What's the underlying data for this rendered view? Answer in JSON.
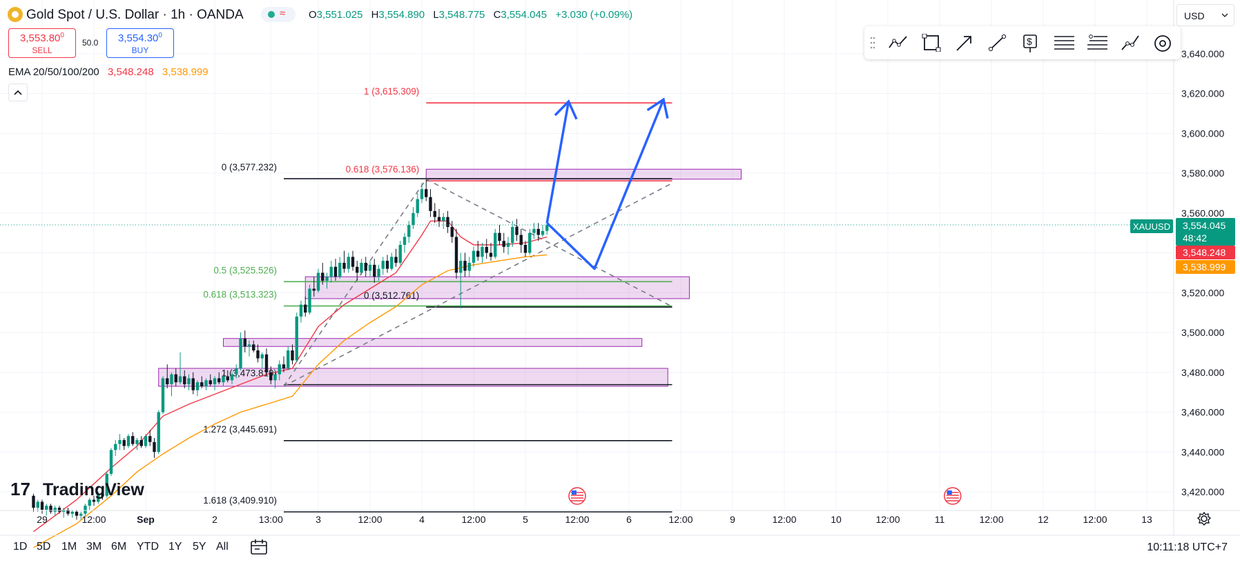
{
  "header": {
    "title": "Gold Spot / U.S. Dollar · 1h · OANDA",
    "ohlc": [
      {
        "key": "O",
        "value": "3,551.025"
      },
      {
        "key": "H",
        "value": "3,554.890"
      },
      {
        "key": "L",
        "value": "3,548.775"
      },
      {
        "key": "C",
        "value": "3,554.045"
      }
    ],
    "change": "+3.030 (+0.09%)",
    "status_icons": [
      "market-open-dot-icon",
      "wave-icon"
    ]
  },
  "trade": {
    "sell_price": "3,553.80",
    "sell_price_sup": "0",
    "sell_label": "SELL",
    "spread": "50.0",
    "buy_price": "3,554.30",
    "buy_price_sup": "0",
    "buy_label": "BUY"
  },
  "ema": {
    "label": "EMA 20/50/100/200",
    "value_20": "3,548.248",
    "value_50": "3,538.999",
    "color_20": "#f23645",
    "color_50": "#ff9800"
  },
  "currency": "USD",
  "toolbar": {
    "tools": [
      "trend-line-icon",
      "rectangle-icon",
      "arrow-icon",
      "ray-icon",
      "price-label-icon",
      "fib-retracement-icon",
      "fib-extension-icon",
      "path-icon",
      "eye-icon"
    ]
  },
  "symbol_badge": "XAUUSD",
  "price_tags": {
    "current": "3,554.045",
    "countdown": "48:42",
    "ema20": "3,548.248",
    "ema50": "3,538.999"
  },
  "bottom": {
    "ranges": [
      "1D",
      "5D",
      "1M",
      "3M",
      "6M",
      "YTD",
      "1Y",
      "5Y",
      "All"
    ],
    "time": "10:11:18 UTC+7"
  },
  "chart_data": {
    "type": "candlestick",
    "symbol": "XAUUSD",
    "title": "Gold Spot / U.S. Dollar · 1h · OANDA",
    "ylim": [
      3410,
      3650
    ],
    "y_ticks": [
      3420,
      3440,
      3460,
      3480,
      3500,
      3520,
      3540,
      3560,
      3580,
      3600,
      3620,
      3640
    ],
    "y_tick_labels": [
      "3,420.000",
      "3,440.000",
      "3,460.000",
      "3,480.000",
      "3,500.000",
      "3,520.000",
      "3,540.000",
      "3,560.000",
      "3,580.000",
      "3,600.000",
      "3,620.000",
      "3,640.000"
    ],
    "x_ticks": [
      {
        "label": "29",
        "t": -64,
        "bold": false
      },
      {
        "label": "12:00",
        "t": -52,
        "bold": false
      },
      {
        "label": "Sep",
        "t": -40,
        "bold": true
      },
      {
        "label": "2",
        "t": -24,
        "bold": false
      },
      {
        "label": "13:00",
        "t": -11,
        "bold": false
      },
      {
        "label": "3",
        "t": 0,
        "bold": false
      },
      {
        "label": "12:00",
        "t": 12,
        "bold": false
      },
      {
        "label": "4",
        "t": 24,
        "bold": false
      },
      {
        "label": "12:00",
        "t": 36,
        "bold": false
      },
      {
        "label": "5",
        "t": 48,
        "bold": false
      },
      {
        "label": "12:00",
        "t": 60,
        "bold": false
      },
      {
        "label": "6",
        "t": 72,
        "bold": false
      },
      {
        "label": "12:00",
        "t": 84,
        "bold": false
      },
      {
        "label": "9",
        "t": 96,
        "bold": false
      },
      {
        "label": "12:00",
        "t": 108,
        "bold": false
      },
      {
        "label": "10",
        "t": 120,
        "bold": false
      },
      {
        "label": "12:00",
        "t": 132,
        "bold": false
      },
      {
        "label": "11",
        "t": 144,
        "bold": false
      },
      {
        "label": "12:00",
        "t": 156,
        "bold": false
      },
      {
        "label": "12",
        "t": 168,
        "bold": false
      },
      {
        "label": "12:00",
        "t": 180,
        "bold": false
      },
      {
        "label": "13",
        "t": 192,
        "bold": false
      }
    ],
    "candles": [
      [
        -66,
        3418,
        3419,
        3410,
        3412
      ],
      [
        -65,
        3412,
        3416,
        3410,
        3415
      ],
      [
        -64,
        3415,
        3416,
        3409,
        3411
      ],
      [
        -63,
        3411,
        3414,
        3408,
        3413
      ],
      [
        -62,
        3413,
        3414,
        3409,
        3410
      ],
      [
        -61,
        3410,
        3413,
        3408,
        3412
      ],
      [
        -60,
        3412,
        3413,
        3409,
        3410
      ],
      [
        -59,
        3410,
        3412,
        3407,
        3411
      ],
      [
        -58,
        3411,
        3412,
        3408,
        3409
      ],
      [
        -57,
        3409,
        3411,
        3407,
        3410
      ],
      [
        -56,
        3410,
        3411,
        3406,
        3408
      ],
      [
        -55,
        3408,
        3410,
        3406,
        3409
      ],
      [
        -54,
        3409,
        3414,
        3408,
        3413
      ],
      [
        -53,
        3413,
        3417,
        3411,
        3416
      ],
      [
        -52,
        3416,
        3418,
        3413,
        3415
      ],
      [
        -51,
        3415,
        3420,
        3414,
        3419
      ],
      [
        -50,
        3419,
        3422,
        3416,
        3418
      ],
      [
        -49,
        3418,
        3430,
        3417,
        3429
      ],
      [
        -48,
        3429,
        3442,
        3428,
        3441
      ],
      [
        -47,
        3441,
        3446,
        3438,
        3444
      ],
      [
        -46,
        3444,
        3449,
        3441,
        3446
      ],
      [
        -45,
        3446,
        3447,
        3441,
        3443
      ],
      [
        -44,
        3443,
        3449,
        3442,
        3448
      ],
      [
        -43,
        3448,
        3450,
        3443,
        3444
      ],
      [
        -42,
        3444,
        3447,
        3441,
        3446
      ],
      [
        -41,
        3446,
        3448,
        3442,
        3443
      ],
      [
        -40,
        3443,
        3449,
        3442,
        3448
      ],
      [
        -39,
        3448,
        3451,
        3443,
        3445
      ],
      [
        -38,
        3445,
        3447,
        3437,
        3440
      ],
      [
        -37,
        3440,
        3461,
        3439,
        3460
      ],
      [
        -36,
        3460,
        3478,
        3459,
        3477
      ],
      [
        -35,
        3477,
        3484,
        3472,
        3474
      ],
      [
        -34,
        3474,
        3480,
        3468,
        3479
      ],
      [
        -33,
        3479,
        3482,
        3473,
        3475
      ],
      [
        -32,
        3475,
        3490,
        3474,
        3478
      ],
      [
        -31,
        3478,
        3481,
        3472,
        3474
      ],
      [
        -30,
        3474,
        3479,
        3471,
        3477
      ],
      [
        -29,
        3477,
        3480,
        3469,
        3471
      ],
      [
        -28,
        3471,
        3476,
        3468,
        3475
      ],
      [
        -27,
        3475,
        3478,
        3472,
        3473
      ],
      [
        -26,
        3473,
        3477,
        3471,
        3476
      ],
      [
        -25,
        3476,
        3479,
        3473,
        3474
      ],
      [
        -24,
        3474,
        3478,
        3471,
        3477
      ],
      [
        -23,
        3477,
        3480,
        3474,
        3475
      ],
      [
        -22,
        3475,
        3479,
        3473,
        3478
      ],
      [
        -21,
        3478,
        3481,
        3475,
        3476
      ],
      [
        -20,
        3476,
        3480,
        3474,
        3479
      ],
      [
        -19,
        3479,
        3484,
        3477,
        3482
      ],
      [
        -18,
        3482,
        3500,
        3481,
        3497
      ],
      [
        -17,
        3497,
        3501,
        3490,
        3493
      ],
      [
        -16,
        3493,
        3496,
        3488,
        3494
      ],
      [
        -15,
        3494,
        3496,
        3490,
        3491
      ],
      [
        -14,
        3491,
        3494,
        3485,
        3487
      ],
      [
        -13,
        3487,
        3490,
        3482,
        3489
      ],
      [
        -12,
        3489,
        3492,
        3478,
        3480
      ],
      [
        -11,
        3480,
        3483,
        3474,
        3476
      ],
      [
        -10,
        3476,
        3481,
        3472,
        3479
      ],
      [
        -9,
        3479,
        3486,
        3476,
        3484
      ],
      [
        -8,
        3484,
        3488,
        3480,
        3482
      ],
      [
        -7,
        3482,
        3493,
        3481,
        3491
      ],
      [
        -6,
        3491,
        3494,
        3484,
        3486
      ],
      [
        -5,
        3486,
        3510,
        3485,
        3508
      ],
      [
        -4,
        3508,
        3516,
        3505,
        3514
      ],
      [
        -3,
        3514,
        3518,
        3508,
        3510
      ],
      [
        -2,
        3510,
        3524,
        3509,
        3522
      ],
      [
        -1,
        3522,
        3528,
        3518,
        3521
      ],
      [
        0,
        3521,
        3532,
        3520,
        3530
      ],
      [
        1,
        3530,
        3535,
        3524,
        3526
      ],
      [
        2,
        3526,
        3530,
        3522,
        3528
      ],
      [
        3,
        3528,
        3536,
        3525,
        3533
      ],
      [
        4,
        3533,
        3537,
        3526,
        3528
      ],
      [
        5,
        3528,
        3538,
        3527,
        3535
      ],
      [
        6,
        3535,
        3541,
        3530,
        3532
      ],
      [
        7,
        3532,
        3540,
        3530,
        3538
      ],
      [
        8,
        3538,
        3541,
        3531,
        3533
      ],
      [
        9,
        3533,
        3536,
        3526,
        3530
      ],
      [
        10,
        3530,
        3537,
        3529,
        3535
      ],
      [
        11,
        3535,
        3538,
        3528,
        3531
      ],
      [
        12,
        3531,
        3536,
        3528,
        3534
      ],
      [
        13,
        3534,
        3537,
        3525,
        3528
      ],
      [
        14,
        3528,
        3534,
        3526,
        3532
      ],
      [
        15,
        3532,
        3538,
        3529,
        3536
      ],
      [
        16,
        3536,
        3539,
        3530,
        3532
      ],
      [
        17,
        3532,
        3540,
        3531,
        3538
      ],
      [
        18,
        3538,
        3542,
        3533,
        3535
      ],
      [
        19,
        3535,
        3546,
        3534,
        3544
      ],
      [
        20,
        3544,
        3550,
        3540,
        3548
      ],
      [
        21,
        3548,
        3556,
        3545,
        3554
      ],
      [
        22,
        3554,
        3563,
        3552,
        3560
      ],
      [
        23,
        3560,
        3570,
        3558,
        3567
      ],
      [
        24,
        3567,
        3575,
        3565,
        3572
      ],
      [
        25,
        3572,
        3577,
        3566,
        3568
      ],
      [
        26,
        3568,
        3572,
        3558,
        3561
      ],
      [
        27,
        3561,
        3565,
        3555,
        3558
      ],
      [
        28,
        3558,
        3562,
        3553,
        3556
      ],
      [
        29,
        3556,
        3560,
        3552,
        3558
      ],
      [
        30,
        3558,
        3561,
        3550,
        3553
      ],
      [
        31,
        3553,
        3556,
        3545,
        3548
      ],
      [
        32,
        3548,
        3552,
        3527,
        3530
      ],
      [
        33,
        3530,
        3540,
        3512,
        3536
      ],
      [
        34,
        3536,
        3540,
        3528,
        3531
      ],
      [
        35,
        3531,
        3538,
        3528,
        3535
      ],
      [
        36,
        3535,
        3543,
        3533,
        3541
      ],
      [
        37,
        3541,
        3546,
        3536,
        3538
      ],
      [
        38,
        3538,
        3545,
        3535,
        3543
      ],
      [
        39,
        3543,
        3547,
        3537,
        3540
      ],
      [
        40,
        3540,
        3545,
        3536,
        3538
      ],
      [
        41,
        3538,
        3552,
        3537,
        3550
      ],
      [
        42,
        3550,
        3554,
        3544,
        3546
      ],
      [
        43,
        3546,
        3550,
        3540,
        3543
      ],
      [
        44,
        3543,
        3548,
        3539,
        3545
      ],
      [
        45,
        3545,
        3556,
        3543,
        3553
      ],
      [
        46,
        3553,
        3557,
        3546,
        3549
      ],
      [
        47,
        3549,
        3552,
        3540,
        3544
      ],
      [
        48,
        3544,
        3546,
        3538,
        3540
      ],
      [
        49,
        3540,
        3552,
        3539,
        3550
      ],
      [
        50,
        3550,
        3555,
        3547,
        3552
      ],
      [
        51,
        3552,
        3555,
        3546,
        3549
      ],
      [
        52,
        3549,
        3554,
        3548,
        3551
      ],
      [
        53,
        3551,
        3555,
        3549,
        3554
      ]
    ],
    "ema20": [
      [
        -66,
        3400
      ],
      [
        -56,
        3416
      ],
      [
        -48,
        3432
      ],
      [
        -42,
        3443
      ],
      [
        -36,
        3458
      ],
      [
        -30,
        3464
      ],
      [
        -24,
        3469
      ],
      [
        -18,
        3474
      ],
      [
        -12,
        3479
      ],
      [
        -6,
        3482
      ],
      [
        0,
        3503
      ],
      [
        6,
        3514
      ],
      [
        12,
        3522
      ],
      [
        18,
        3530
      ],
      [
        24,
        3549
      ],
      [
        26,
        3556
      ],
      [
        30,
        3556
      ],
      [
        33,
        3548
      ],
      [
        36,
        3544
      ],
      [
        42,
        3544
      ],
      [
        48,
        3545
      ],
      [
        53,
        3548
      ]
    ],
    "ema50": [
      [
        -66,
        3392
      ],
      [
        -56,
        3404
      ],
      [
        -48,
        3418
      ],
      [
        -42,
        3430
      ],
      [
        -36,
        3439
      ],
      [
        -30,
        3447
      ],
      [
        -24,
        3454
      ],
      [
        -18,
        3460
      ],
      [
        -12,
        3464
      ],
      [
        -6,
        3468
      ],
      [
        0,
        3484
      ],
      [
        6,
        3496
      ],
      [
        12,
        3505
      ],
      [
        18,
        3513
      ],
      [
        24,
        3524
      ],
      [
        30,
        3531
      ],
      [
        36,
        3534
      ],
      [
        42,
        3536
      ],
      [
        48,
        3538
      ],
      [
        53,
        3539
      ]
    ],
    "last_price": 3554.045,
    "zones": [
      {
        "t0": 25,
        "t1": 98,
        "y0": 3577,
        "y1": 3582
      },
      {
        "t0": -3,
        "t1": 86,
        "y0": 3517,
        "y1": 3528
      },
      {
        "t0": -22,
        "t1": 75,
        "y0": 3493,
        "y1": 3497
      },
      {
        "t0": -37,
        "t1": 81,
        "y0": 3473,
        "y1": 3482
      }
    ],
    "levels": [
      {
        "label": "1 (3,615.309)",
        "y": 3615.309,
        "t0": 25,
        "t1": 82,
        "color": "#f23645",
        "label_color": "#f23645"
      },
      {
        "label": "0 (3,577.232)",
        "y": 3577.232,
        "t0": -8,
        "t1": 82,
        "color": "#131722",
        "label_color": "#131722"
      },
      {
        "label": "0.618 (3,576.136)",
        "y": 3576.136,
        "t0": 25,
        "t1": 82,
        "color": "#f23645",
        "label_color": "#f23645"
      },
      {
        "label": "0.5 (3,525.526)",
        "y": 3525.526,
        "t0": -8,
        "t1": 82,
        "color": "#4caf50",
        "label_color": "#4caf50"
      },
      {
        "label": "0.618 (3,513.323)",
        "y": 3513.323,
        "t0": -8,
        "t1": 82,
        "color": "#4caf50",
        "label_color": "#4caf50"
      },
      {
        "label": "0 (3,512.761)",
        "y": 3512.761,
        "t0": 25,
        "t1": 82,
        "color": "#131722",
        "label_color": "#131722"
      },
      {
        "label": "1 (3,473.819)",
        "y": 3473.819,
        "t0": -8,
        "t1": 82,
        "color": "#131722",
        "label_color": "#131722"
      },
      {
        "label": "1.272 (3,445.691)",
        "y": 3445.691,
        "t0": -8,
        "t1": 82,
        "color": "#131722",
        "label_color": "#131722"
      },
      {
        "label": "1.618 (3,409.910)",
        "y": 3409.91,
        "t0": -8,
        "t1": 82,
        "color": "#131722",
        "label_color": "#131722"
      }
    ],
    "trendlines": [
      {
        "from": [
          25,
          3577
        ],
        "to": [
          82,
          3513
        ]
      },
      {
        "from": [
          -8,
          3473
        ],
        "to": [
          82,
          3575
        ]
      },
      {
        "from": [
          -8,
          3473
        ],
        "to": [
          25,
          3577
        ]
      }
    ],
    "projection_path": [
      [
        53,
        3555
      ],
      [
        64,
        3532
      ],
      [
        80,
        3617
      ]
    ],
    "projection_arrow": {
      "from": [
        53,
        3555
      ],
      "to": [
        58,
        3616
      ]
    },
    "events": [
      {
        "t": 60
      },
      {
        "t": 147
      }
    ]
  }
}
